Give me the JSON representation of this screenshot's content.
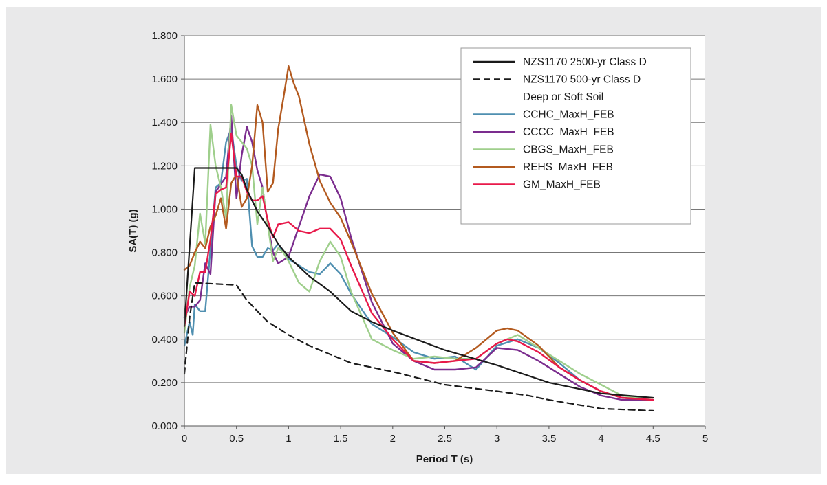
{
  "chart_data": {
    "type": "line",
    "xlabel": "Period T (s)",
    "ylabel": "SA(T) (g)",
    "xlim": [
      0,
      5
    ],
    "ylim": [
      0,
      1.8
    ],
    "x_ticks": [
      "0",
      "0.5",
      "1",
      "1.5",
      "2",
      "2.5",
      "3",
      "3.5",
      "4",
      "4.5",
      "5"
    ],
    "y_ticks": [
      "0.000",
      "0.200",
      "0.400",
      "0.600",
      "0.800",
      "1.000",
      "1.200",
      "1.400",
      "1.600",
      "1.800"
    ],
    "grid": "horizontal",
    "legend_position": "top-right",
    "legend_note": "Deep or Soft Soil",
    "series": [
      {
        "name": "NZS1170 2500-yr Class D",
        "color": "#1a1a1a",
        "dash": "solid",
        "points": [
          [
            0,
            0.46
          ],
          [
            0.1,
            1.19
          ],
          [
            0.5,
            1.19
          ],
          [
            0.55,
            1.16
          ],
          [
            0.6,
            1.09
          ],
          [
            0.7,
            0.99
          ],
          [
            0.8,
            0.92
          ],
          [
            0.9,
            0.84
          ],
          [
            1.0,
            0.78
          ],
          [
            1.2,
            0.69
          ],
          [
            1.4,
            0.62
          ],
          [
            1.6,
            0.53
          ],
          [
            1.8,
            0.48
          ],
          [
            2.0,
            0.44
          ],
          [
            2.5,
            0.35
          ],
          [
            3.0,
            0.28
          ],
          [
            3.5,
            0.2
          ],
          [
            4.0,
            0.15
          ],
          [
            4.5,
            0.13
          ]
        ]
      },
      {
        "name": "NZS1170 500-yr Class D",
        "color": "#1a1a1a",
        "dash": "dashed",
        "points": [
          [
            0,
            0.24
          ],
          [
            0.05,
            0.5
          ],
          [
            0.1,
            0.66
          ],
          [
            0.5,
            0.65
          ],
          [
            0.6,
            0.58
          ],
          [
            0.7,
            0.53
          ],
          [
            0.8,
            0.48
          ],
          [
            1.0,
            0.42
          ],
          [
            1.2,
            0.37
          ],
          [
            1.4,
            0.33
          ],
          [
            1.6,
            0.29
          ],
          [
            1.8,
            0.27
          ],
          [
            2.0,
            0.25
          ],
          [
            2.5,
            0.19
          ],
          [
            3.0,
            0.16
          ],
          [
            3.3,
            0.14
          ],
          [
            3.5,
            0.12
          ],
          [
            4.0,
            0.08
          ],
          [
            4.5,
            0.07
          ]
        ]
      },
      {
        "name": "CCHC_MaxH_FEB",
        "color": "#4f8fb0",
        "dash": "solid",
        "points": [
          [
            0,
            0.37
          ],
          [
            0.05,
            0.48
          ],
          [
            0.08,
            0.42
          ],
          [
            0.1,
            0.56
          ],
          [
            0.15,
            0.53
          ],
          [
            0.2,
            0.53
          ],
          [
            0.3,
            1.1
          ],
          [
            0.35,
            1.12
          ],
          [
            0.4,
            1.31
          ],
          [
            0.45,
            1.37
          ],
          [
            0.5,
            1.2
          ],
          [
            0.55,
            1.13
          ],
          [
            0.6,
            1.14
          ],
          [
            0.65,
            0.83
          ],
          [
            0.7,
            0.78
          ],
          [
            0.75,
            0.78
          ],
          [
            0.8,
            0.82
          ],
          [
            0.85,
            0.81
          ],
          [
            0.9,
            0.84
          ],
          [
            0.95,
            0.8
          ],
          [
            1.0,
            0.77
          ],
          [
            1.2,
            0.71
          ],
          [
            1.3,
            0.7
          ],
          [
            1.4,
            0.75
          ],
          [
            1.5,
            0.7
          ],
          [
            1.6,
            0.61
          ],
          [
            1.8,
            0.47
          ],
          [
            2.0,
            0.41
          ],
          [
            2.2,
            0.34
          ],
          [
            2.4,
            0.31
          ],
          [
            2.6,
            0.32
          ],
          [
            2.8,
            0.26
          ],
          [
            3.0,
            0.37
          ],
          [
            3.2,
            0.4
          ],
          [
            3.4,
            0.36
          ],
          [
            3.6,
            0.29
          ],
          [
            3.8,
            0.21
          ],
          [
            4.0,
            0.16
          ],
          [
            4.2,
            0.13
          ],
          [
            4.5,
            0.12
          ]
        ]
      },
      {
        "name": "CCCC_MaxH_FEB",
        "color": "#7b2d8e",
        "dash": "solid",
        "points": [
          [
            0,
            0.5
          ],
          [
            0.05,
            0.55
          ],
          [
            0.1,
            0.55
          ],
          [
            0.15,
            0.58
          ],
          [
            0.2,
            0.75
          ],
          [
            0.25,
            0.7
          ],
          [
            0.3,
            1.08
          ],
          [
            0.4,
            1.15
          ],
          [
            0.45,
            1.43
          ],
          [
            0.5,
            1.05
          ],
          [
            0.55,
            1.25
          ],
          [
            0.6,
            1.38
          ],
          [
            0.65,
            1.31
          ],
          [
            0.7,
            1.18
          ],
          [
            0.75,
            1.1
          ],
          [
            0.8,
            0.93
          ],
          [
            0.85,
            0.8
          ],
          [
            0.9,
            0.75
          ],
          [
            1.0,
            0.78
          ],
          [
            1.1,
            0.92
          ],
          [
            1.2,
            1.06
          ],
          [
            1.3,
            1.16
          ],
          [
            1.4,
            1.15
          ],
          [
            1.5,
            1.05
          ],
          [
            1.6,
            0.87
          ],
          [
            1.8,
            0.57
          ],
          [
            2.0,
            0.38
          ],
          [
            2.2,
            0.3
          ],
          [
            2.4,
            0.26
          ],
          [
            2.6,
            0.26
          ],
          [
            2.8,
            0.27
          ],
          [
            3.0,
            0.36
          ],
          [
            3.2,
            0.35
          ],
          [
            3.4,
            0.3
          ],
          [
            3.6,
            0.24
          ],
          [
            3.8,
            0.18
          ],
          [
            4.0,
            0.14
          ],
          [
            4.2,
            0.12
          ],
          [
            4.5,
            0.12
          ]
        ]
      },
      {
        "name": "CBGS_MaxH_FEB",
        "color": "#9fcf8c",
        "dash": "solid",
        "points": [
          [
            0,
            0.43
          ],
          [
            0.05,
            0.64
          ],
          [
            0.1,
            0.74
          ],
          [
            0.15,
            0.98
          ],
          [
            0.2,
            0.84
          ],
          [
            0.25,
            1.39
          ],
          [
            0.3,
            1.2
          ],
          [
            0.35,
            1.1
          ],
          [
            0.4,
            0.96
          ],
          [
            0.45,
            1.48
          ],
          [
            0.5,
            1.34
          ],
          [
            0.55,
            1.31
          ],
          [
            0.6,
            1.28
          ],
          [
            0.65,
            1.2
          ],
          [
            0.7,
            0.93
          ],
          [
            0.75,
            1.1
          ],
          [
            0.8,
            0.93
          ],
          [
            0.85,
            0.76
          ],
          [
            0.9,
            0.82
          ],
          [
            0.95,
            0.8
          ],
          [
            1.0,
            0.76
          ],
          [
            1.1,
            0.66
          ],
          [
            1.2,
            0.62
          ],
          [
            1.3,
            0.76
          ],
          [
            1.4,
            0.85
          ],
          [
            1.5,
            0.78
          ],
          [
            1.6,
            0.62
          ],
          [
            1.8,
            0.4
          ],
          [
            2.0,
            0.35
          ],
          [
            2.2,
            0.31
          ],
          [
            2.4,
            0.32
          ],
          [
            2.6,
            0.31
          ],
          [
            2.8,
            0.31
          ],
          [
            3.0,
            0.38
          ],
          [
            3.2,
            0.42
          ],
          [
            3.4,
            0.36
          ],
          [
            3.6,
            0.3
          ],
          [
            3.8,
            0.24
          ],
          [
            4.0,
            0.19
          ],
          [
            4.2,
            0.14
          ],
          [
            4.5,
            0.12
          ]
        ]
      },
      {
        "name": "REHS_MaxH_FEB",
        "color": "#b35a1f",
        "dash": "solid",
        "points": [
          [
            0,
            0.72
          ],
          [
            0.05,
            0.74
          ],
          [
            0.1,
            0.8
          ],
          [
            0.15,
            0.85
          ],
          [
            0.2,
            0.82
          ],
          [
            0.25,
            0.92
          ],
          [
            0.3,
            0.97
          ],
          [
            0.35,
            1.05
          ],
          [
            0.4,
            0.91
          ],
          [
            0.45,
            1.12
          ],
          [
            0.5,
            1.16
          ],
          [
            0.55,
            1.01
          ],
          [
            0.6,
            1.05
          ],
          [
            0.65,
            1.2
          ],
          [
            0.7,
            1.48
          ],
          [
            0.75,
            1.4
          ],
          [
            0.8,
            1.08
          ],
          [
            0.85,
            1.12
          ],
          [
            0.9,
            1.37
          ],
          [
            0.95,
            1.51
          ],
          [
            1.0,
            1.66
          ],
          [
            1.05,
            1.58
          ],
          [
            1.1,
            1.52
          ],
          [
            1.2,
            1.3
          ],
          [
            1.3,
            1.13
          ],
          [
            1.4,
            1.03
          ],
          [
            1.5,
            0.96
          ],
          [
            1.6,
            0.85
          ],
          [
            1.8,
            0.61
          ],
          [
            2.0,
            0.43
          ],
          [
            2.2,
            0.3
          ],
          [
            2.4,
            0.29
          ],
          [
            2.6,
            0.3
          ],
          [
            2.8,
            0.36
          ],
          [
            3.0,
            0.44
          ],
          [
            3.1,
            0.45
          ],
          [
            3.2,
            0.44
          ],
          [
            3.4,
            0.37
          ],
          [
            3.6,
            0.27
          ],
          [
            3.8,
            0.21
          ],
          [
            4.0,
            0.16
          ],
          [
            4.2,
            0.13
          ],
          [
            4.5,
            0.12
          ]
        ]
      },
      {
        "name": "GM_MaxH_FEB",
        "color": "#e8194a",
        "dash": "solid",
        "points": [
          [
            0,
            0.46
          ],
          [
            0.05,
            0.62
          ],
          [
            0.1,
            0.6
          ],
          [
            0.15,
            0.71
          ],
          [
            0.2,
            0.71
          ],
          [
            0.25,
            0.86
          ],
          [
            0.3,
            1.07
          ],
          [
            0.35,
            1.09
          ],
          [
            0.4,
            1.1
          ],
          [
            0.45,
            1.35
          ],
          [
            0.5,
            1.15
          ],
          [
            0.55,
            1.15
          ],
          [
            0.6,
            1.08
          ],
          [
            0.65,
            1.04
          ],
          [
            0.7,
            1.04
          ],
          [
            0.75,
            1.06
          ],
          [
            0.8,
            0.95
          ],
          [
            0.85,
            0.87
          ],
          [
            0.9,
            0.93
          ],
          [
            1.0,
            0.94
          ],
          [
            1.1,
            0.9
          ],
          [
            1.2,
            0.89
          ],
          [
            1.3,
            0.91
          ],
          [
            1.4,
            0.91
          ],
          [
            1.5,
            0.86
          ],
          [
            1.6,
            0.74
          ],
          [
            1.8,
            0.52
          ],
          [
            2.0,
            0.4
          ],
          [
            2.2,
            0.3
          ],
          [
            2.4,
            0.29
          ],
          [
            2.6,
            0.3
          ],
          [
            2.8,
            0.31
          ],
          [
            3.0,
            0.38
          ],
          [
            3.1,
            0.4
          ],
          [
            3.2,
            0.39
          ],
          [
            3.4,
            0.34
          ],
          [
            3.6,
            0.27
          ],
          [
            3.8,
            0.21
          ],
          [
            4.0,
            0.16
          ],
          [
            4.2,
            0.13
          ],
          [
            4.5,
            0.12
          ]
        ]
      }
    ]
  }
}
